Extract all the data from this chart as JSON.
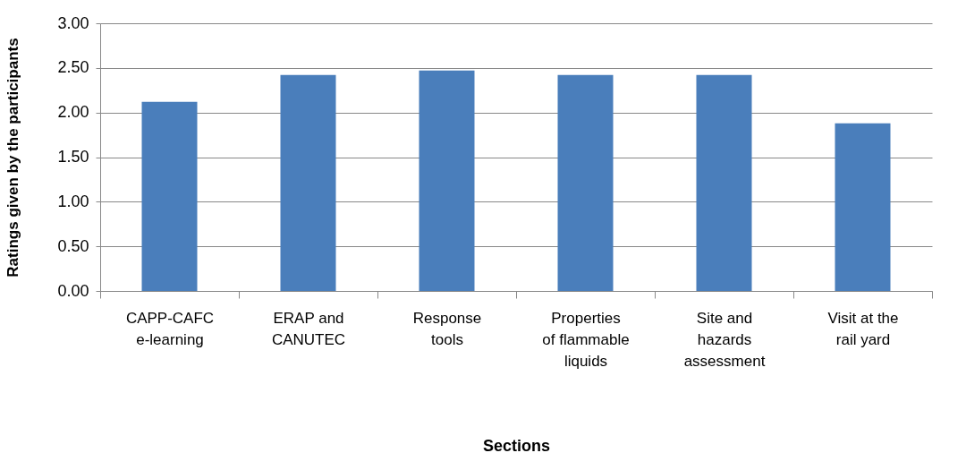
{
  "chart_data": {
    "type": "bar",
    "xlabel": "Sections",
    "ylabel": "Ratings given by the participants",
    "categories": [
      "CAPP-CAFC e-learning",
      "ERAP and CANUTEC",
      "Response tools",
      "Properties of flammable liquids",
      "Site and hazards assessment",
      "Visit at the rail yard"
    ],
    "values": [
      2.12,
      2.42,
      2.47,
      2.42,
      2.42,
      1.88
    ],
    "color": "#4a7ebb",
    "ylim": [
      0,
      3
    ],
    "yticks": [
      {
        "value": 0,
        "label": "0.00"
      },
      {
        "value": 0.5,
        "label": "0.50"
      },
      {
        "value": 1,
        "label": "1.00"
      },
      {
        "value": 1.5,
        "label": "1.50"
      },
      {
        "value": 2,
        "label": "2.00"
      },
      {
        "value": 2.5,
        "label": "2.50"
      },
      {
        "value": 3,
        "label": "3.00"
      }
    ],
    "grid": "y"
  }
}
